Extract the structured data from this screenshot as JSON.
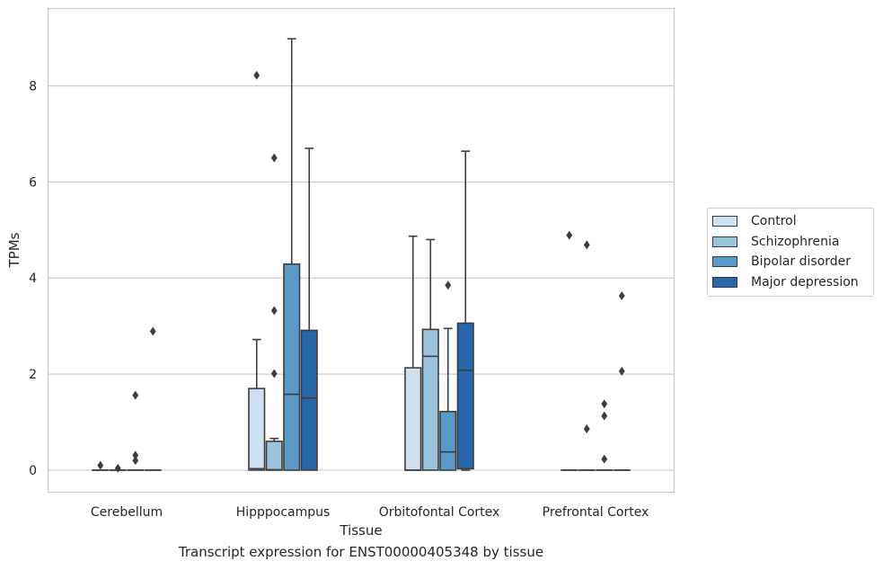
{
  "chart_data": {
    "type": "boxplot",
    "title": "Transcript expression for ENST00000405348 by tissue",
    "xlabel": "Tissue",
    "ylabel": "TPMs",
    "ylim": [
      -0.45,
      9.6
    ],
    "yticks": [
      0,
      2,
      4,
      6,
      8
    ],
    "grid": "horizontal",
    "legend_position": "right",
    "categories": [
      "Cerebellum",
      "Hipppocampus",
      "Orbitofontal Cortex",
      "Prefrontal Cortex"
    ],
    "series": [
      {
        "name": "Control",
        "color": "#cfe1f0",
        "boxes": [
          {
            "q1": 0,
            "median": 0,
            "q3": 0,
            "whisker_low": 0,
            "whisker_high": 0,
            "outliers": [
              0.1
            ]
          },
          {
            "q1": 0,
            "median": 0.03,
            "q3": 1.7,
            "whisker_low": 0,
            "whisker_high": 2.72,
            "outliers": [
              8.22
            ]
          },
          {
            "q1": 0,
            "median": 0,
            "q3": 2.13,
            "whisker_low": 0,
            "whisker_high": 4.87,
            "outliers": []
          },
          {
            "q1": 0,
            "median": 0,
            "q3": 0,
            "whisker_low": 0,
            "whisker_high": 0,
            "outliers": [
              4.89
            ]
          }
        ]
      },
      {
        "name": "Schizophrenia",
        "color": "#9ac3de",
        "boxes": [
          {
            "q1": 0,
            "median": 0,
            "q3": 0,
            "whisker_low": 0,
            "whisker_high": 0,
            "outliers": [
              0.04
            ]
          },
          {
            "q1": 0,
            "median": 0.01,
            "q3": 0.6,
            "whisker_low": 0,
            "whisker_high": 0.66,
            "outliers": [
              6.5,
              3.32,
              2.01
            ]
          },
          {
            "q1": 0,
            "median": 2.37,
            "q3": 2.93,
            "whisker_low": 0,
            "whisker_high": 4.8,
            "outliers": []
          },
          {
            "q1": 0,
            "median": 0,
            "q3": 0,
            "whisker_low": 0,
            "whisker_high": 0,
            "outliers": [
              4.69,
              0.86
            ]
          }
        ]
      },
      {
        "name": "Bipolar disorder",
        "color": "#5a9ac8",
        "boxes": [
          {
            "q1": 0,
            "median": 0,
            "q3": 0,
            "whisker_low": 0,
            "whisker_high": 0,
            "outliers": [
              1.56,
              0.31,
              0.2
            ]
          },
          {
            "q1": 0,
            "median": 1.58,
            "q3": 4.29,
            "whisker_low": 0,
            "whisker_high": 8.98,
            "outliers": []
          },
          {
            "q1": 0,
            "median": 0.38,
            "q3": 1.22,
            "whisker_low": 0,
            "whisker_high": 2.95,
            "outliers": [
              3.85
            ]
          },
          {
            "q1": 0,
            "median": 0,
            "q3": 0,
            "whisker_low": 0,
            "whisker_high": 0,
            "outliers": [
              1.38,
              1.13,
              0.23
            ]
          }
        ]
      },
      {
        "name": "Major depression",
        "color": "#2766a9",
        "boxes": [
          {
            "q1": 0,
            "median": 0,
            "q3": 0,
            "whisker_low": 0,
            "whisker_high": 0,
            "outliers": [
              2.89
            ]
          },
          {
            "q1": 0,
            "median": 1.5,
            "q3": 2.91,
            "whisker_low": 0,
            "whisker_high": 6.7,
            "outliers": []
          },
          {
            "q1": 0.03,
            "median": 2.08,
            "q3": 3.06,
            "whisker_low": 0,
            "whisker_high": 6.64,
            "outliers": []
          },
          {
            "q1": 0,
            "median": 0,
            "q3": 0,
            "whisker_low": 0,
            "whisker_high": 0,
            "outliers": [
              3.63,
              2.06
            ]
          }
        ]
      }
    ]
  }
}
